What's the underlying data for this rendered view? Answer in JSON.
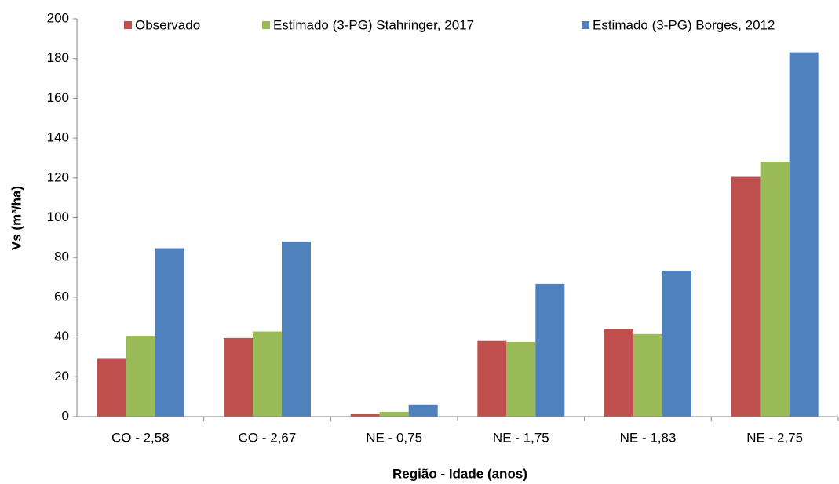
{
  "chart_data": {
    "type": "bar",
    "ylabel": "Vs (m³/ha)",
    "xlabel": "Região - Idade (anos)",
    "categories": [
      "CO - 2,58",
      "CO - 2,67",
      "NE - 0,75",
      "NE - 1,75",
      "NE - 1,83",
      "NE - 2,75"
    ],
    "series": [
      {
        "name": "Observado",
        "color": "#c0504d",
        "values": [
          29,
          39.5,
          1.2,
          38,
          44,
          120.5
        ]
      },
      {
        "name": "Estimado (3-PG) Stahringer, 2017",
        "color": "#9bbb59",
        "values": [
          40.6,
          42.8,
          2.4,
          37.5,
          41.5,
          128.2
        ]
      },
      {
        "name": "Estimado (3-PG) Borges, 2012",
        "color": "#4f81bd",
        "values": [
          84.6,
          88,
          6,
          66.7,
          73.4,
          183.2
        ]
      }
    ],
    "ylim": [
      0,
      200
    ],
    "yticks": [
      0,
      20,
      40,
      60,
      80,
      100,
      120,
      140,
      160,
      180,
      200
    ],
    "grid": false,
    "legend": "top"
  }
}
